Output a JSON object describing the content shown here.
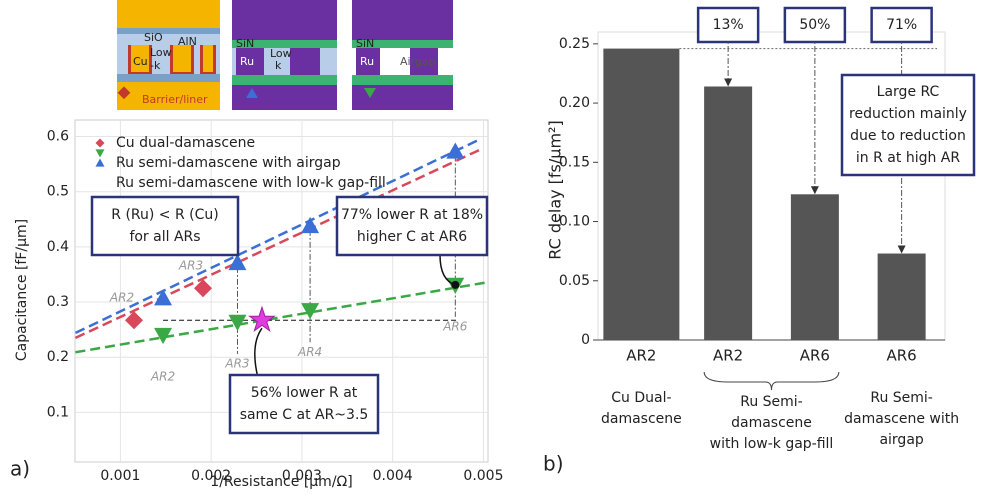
{
  "schematics": {
    "labels": [
      "SiO",
      "AlN",
      "Cu",
      "Low",
      "-k",
      "Barrier/liner",
      "SiN",
      "Ru",
      "Low",
      "k",
      "SiN",
      "Ru",
      "Airgap"
    ]
  },
  "chart_data": [
    {
      "type": "scatter",
      "panel": "a)",
      "x_label": "1/Resistance [μm/Ω]",
      "y_label": "Capacitance [fF/μm]",
      "xlim": [
        0.0005,
        0.00505
      ],
      "ylim": [
        0.01,
        0.63
      ],
      "xticks": [
        0.001,
        0.002,
        0.003,
        0.004,
        0.005
      ],
      "yticks": [
        0.1,
        0.2,
        0.3,
        0.4,
        0.5,
        0.6
      ],
      "series": [
        {
          "name": "Cu dual-damascene",
          "color": "#d9485a",
          "marker": "diamond",
          "x": [
            0.00115,
            0.00191
          ],
          "y": [
            0.267,
            0.325
          ],
          "labels": [
            "AR2",
            "AR3"
          ]
        },
        {
          "name": "Ru semi-damascene with airgap",
          "color": "#3aa845",
          "marker": "triangle-down",
          "x": [
            0.00147,
            0.00229,
            0.00309,
            0.00469
          ],
          "y": [
            0.24,
            0.264,
            0.285,
            0.331
          ],
          "labels": [
            "AR2",
            "AR3",
            "AR4",
            "AR6"
          ]
        },
        {
          "name": "Ru semi-damascene with low-k gap-fill",
          "color": "#3b6fd6",
          "marker": "triangle-up",
          "x": [
            0.00147,
            0.00229,
            0.00309,
            0.00469
          ],
          "y": [
            0.307,
            0.371,
            0.438,
            0.573
          ]
        }
      ],
      "fit_lines": [
        {
          "color": "#d9485a",
          "x": [
            0.000505,
            0.00496
          ],
          "y": [
            0.235,
            0.576
          ]
        },
        {
          "color": "#3b6fd6",
          "x": [
            0.000505,
            0.00496
          ],
          "y": [
            0.244,
            0.595
          ]
        },
        {
          "color": "#3aa845",
          "x": [
            0.000505,
            0.00505
          ],
          "y": [
            0.209,
            0.336
          ]
        }
      ],
      "highlight": {
        "x": 0.00256,
        "y": 0.267,
        "color": "#e03ce0"
      },
      "reference_line": {
        "x": [
          0.00147,
          0.0047
        ],
        "y": 0.267
      },
      "annotations": [
        [
          "R (Ru) < R (Cu)",
          "for all ARs"
        ],
        [
          "77% lower R at 18%",
          "higher C at AR6"
        ],
        [
          "56% lower R at",
          "same C at AR~3.5"
        ]
      ]
    },
    {
      "type": "bar",
      "panel": "b)",
      "y_label": "RC delay [fs/μm²]",
      "categories": [
        "AR2",
        "AR2",
        "AR6",
        "AR6"
      ],
      "values": [
        0.246,
        0.214,
        0.123,
        0.073
      ],
      "color": "#555555",
      "ylim": [
        0,
        0.26
      ],
      "yticks": [
        0,
        {
          "value": 0.05,
          "label": "0.05"
        },
        {
          "value": 0.1,
          "label": "0.10"
        },
        {
          "value": 0.15,
          "label": "0.15"
        },
        {
          "value": 0.2,
          "label": "0.20"
        },
        {
          "value": 0.25,
          "label": "0.25"
        }
      ],
      "reduction_labels": [
        null,
        "13%",
        "50%",
        "71%"
      ],
      "groups": [
        [
          "Cu Dual-",
          "damascene"
        ],
        [
          "Ru Semi-",
          "damascene",
          "with low-k gap-fill"
        ],
        [
          "Ru Semi-",
          "damascene with",
          "airgap"
        ]
      ],
      "annotation": [
        "Large RC",
        "reduction mainly",
        "due to reduction",
        "in R at high AR"
      ]
    }
  ]
}
